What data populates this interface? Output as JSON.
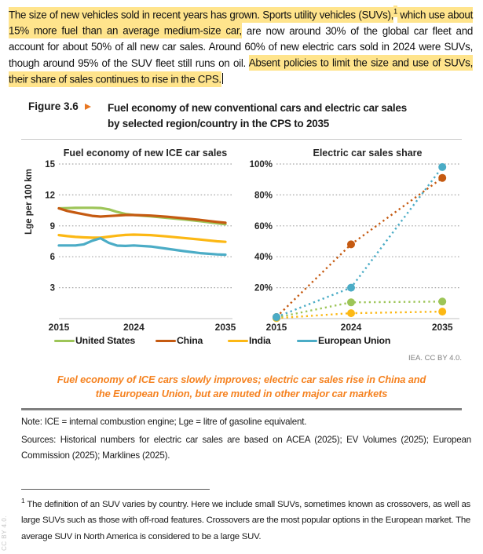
{
  "intro": {
    "segments": [
      {
        "text": "The size of new vehicles sold in recent years has grown. Sports utility vehicles (SUVs),",
        "highlight": true
      },
      {
        "text": "1",
        "highlight": true,
        "sup": true
      },
      {
        "text": " which use about 15% more fuel than an average medium-size car,",
        "highlight": true
      },
      {
        "text": " are now around 30% of the global car fleet and account for about 50% of all new car sales. Around 60% of new electric cars sold in 2024 were SUVs, though around 95% of the SUV fleet still runs on oil. ",
        "highlight": false
      },
      {
        "text": "Absent policies to limit the size and use of SUVs, their share of sales continues to rise in the CPS.",
        "highlight": true
      }
    ]
  },
  "figure": {
    "label": "Figure 3.6",
    "arrow_icon": "triangle-right",
    "title_line1": "Fuel economy of new conventional cars and electric car sales",
    "title_line2": "by selected region/country in the CPS to 2035"
  },
  "attribution": "IEA. CC BY 4.0.",
  "caption": {
    "line1": "Fuel economy of ICE cars slowly improves; electric car sales rise in China and",
    "line2": "the European Union, but are muted in other major car markets"
  },
  "note": "Note: ICE = internal combustion engine; Lge = litre of gasoline equivalent.",
  "sources": "Sources: Historical numbers for electric car sales are based on ACEA (2025); EV Volumes (2025); European Commission (2025); Marklines (2025).",
  "footnote": {
    "marker": "1",
    "text": "The definition of an SUV varies by country. Here we include small SUVs, sometimes known as crossovers, as well as large SUVs such as those with off-road features. Crossovers are the most popular options in the European market. The average SUV in North America is considered to be a large SUV."
  },
  "side_text": "CC BY 4.0.",
  "colors": {
    "highlight_yellow": "#FFE48C",
    "caption_orange": "#F58220",
    "figure_arrow_orange": "#E87722",
    "united_states_green": "#9DC558",
    "china_orange": "#C55A11",
    "india_yellow": "#FCB814",
    "european_union_blue": "#4BACC6",
    "gridline_gray": "#A6A6A6",
    "attribution_gray": "#7F7F7F"
  },
  "chart_data": [
    {
      "type": "line",
      "title": "Fuel economy of new ICE car sales",
      "xlabel": "",
      "ylabel": "Lge per 100 km",
      "ylim": [
        0,
        15
      ],
      "yticks": [
        3,
        6,
        9,
        12,
        15
      ],
      "ytick_labels": [
        "3",
        "6",
        "9",
        "12",
        "15"
      ],
      "xlim": [
        2015,
        2035
      ],
      "xticks": [
        2015,
        2024,
        2035
      ],
      "xtick_labels": [
        "2015",
        "2024",
        "2035"
      ],
      "grid": "horizontal-dotted",
      "line_style": "solid",
      "markers": false,
      "legend_position": "below-shared",
      "series": [
        {
          "name": "United States",
          "color": "#9DC558",
          "x": [
            2015,
            2016,
            2017,
            2018,
            2019,
            2020,
            2021,
            2022,
            2023,
            2024,
            2026,
            2028,
            2030,
            2032,
            2034,
            2035
          ],
          "values": [
            10.7,
            10.72,
            10.74,
            10.75,
            10.75,
            10.73,
            10.6,
            10.35,
            10.15,
            10.05,
            9.93,
            9.78,
            9.62,
            9.45,
            9.25,
            9.15
          ]
        },
        {
          "name": "China",
          "color": "#C55A11",
          "x": [
            2015,
            2016,
            2017,
            2018,
            2019,
            2020,
            2021,
            2022,
            2023,
            2024,
            2026,
            2028,
            2030,
            2032,
            2034,
            2035
          ],
          "values": [
            10.7,
            10.45,
            10.28,
            10.12,
            9.97,
            9.9,
            9.95,
            10.0,
            10.05,
            10.05,
            10.0,
            9.88,
            9.73,
            9.57,
            9.38,
            9.3
          ]
        },
        {
          "name": "India",
          "color": "#FCB814",
          "x": [
            2015,
            2016,
            2017,
            2018,
            2019,
            2020,
            2021,
            2022,
            2023,
            2024,
            2026,
            2028,
            2030,
            2032,
            2034,
            2035
          ],
          "values": [
            8.1,
            8.0,
            7.93,
            7.88,
            7.85,
            7.85,
            7.95,
            8.05,
            8.12,
            8.15,
            8.1,
            7.97,
            7.82,
            7.67,
            7.5,
            7.45
          ]
        },
        {
          "name": "European Union",
          "color": "#4BACC6",
          "x": [
            2015,
            2016,
            2017,
            2018,
            2019,
            2020,
            2021,
            2022,
            2023,
            2024,
            2026,
            2028,
            2030,
            2032,
            2034,
            2035
          ],
          "values": [
            7.1,
            7.1,
            7.1,
            7.2,
            7.55,
            7.8,
            7.35,
            7.08,
            7.05,
            7.1,
            7.0,
            6.78,
            6.55,
            6.35,
            6.23,
            6.2
          ]
        }
      ]
    },
    {
      "type": "line",
      "title": "Electric car sales share",
      "xlabel": "",
      "ylabel": "",
      "ylim": [
        0,
        100
      ],
      "yticks": [
        20,
        40,
        60,
        80,
        100
      ],
      "ytick_labels": [
        "20%",
        "40%",
        "60%",
        "80%",
        "100%"
      ],
      "xlim": [
        2015,
        2035
      ],
      "xticks": [
        2015,
        2024,
        2035
      ],
      "xtick_labels": [
        "2015",
        "2024",
        "2035"
      ],
      "grid": "horizontal-dotted",
      "line_style": "dotted",
      "markers": true,
      "marker_years": [
        2015,
        2024,
        2035
      ],
      "legend_position": "below-shared",
      "series": [
        {
          "name": "India",
          "color": "#FCB814",
          "x": [
            2015,
            2024,
            2035
          ],
          "values": [
            0.3,
            3.5,
            4.5
          ]
        },
        {
          "name": "United States",
          "color": "#9DC558",
          "x": [
            2015,
            2024,
            2035
          ],
          "values": [
            0.7,
            10.5,
            11.0
          ]
        },
        {
          "name": "China",
          "color": "#C55A11",
          "x": [
            2015,
            2024,
            2035
          ],
          "values": [
            1.0,
            48.0,
            91.0
          ]
        },
        {
          "name": "European Union",
          "color": "#4BACC6",
          "x": [
            2015,
            2024,
            2035
          ],
          "values": [
            1.0,
            20.0,
            98.0
          ]
        }
      ]
    }
  ]
}
